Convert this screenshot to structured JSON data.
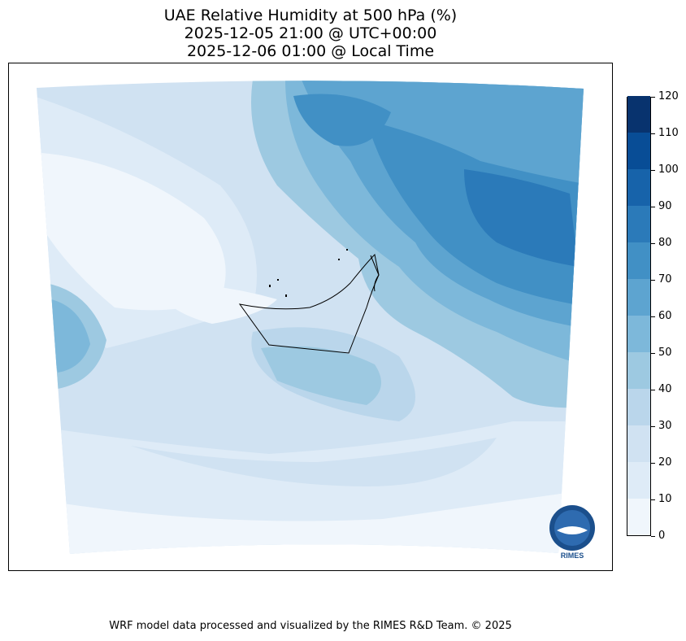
{
  "header": {
    "title_line1": "UAE Relative Humidity at 500 hPa (%)",
    "title_line2": "2025-12-05 21:00 @ UTC+00:00",
    "title_line3": "2025-12-06 01:00 @ Local Time"
  },
  "colorbar": {
    "ticks": [
      "0",
      "10",
      "20",
      "30",
      "40",
      "50",
      "60",
      "70",
      "80",
      "90",
      "100",
      "110",
      "120"
    ],
    "colors": [
      "#f0f6fc",
      "#deebf7",
      "#d0e2f2",
      "#bad6eb",
      "#9dc9e1",
      "#7db8da",
      "#5da4d0",
      "#4190c5",
      "#2b7ab9",
      "#1763aa",
      "#084d96",
      "#08336e"
    ]
  },
  "logo": {
    "text": "RIMES"
  },
  "footer": {
    "credit": "WRF model data processed and visualized by the RIMES R&D Team. © 2025"
  }
}
